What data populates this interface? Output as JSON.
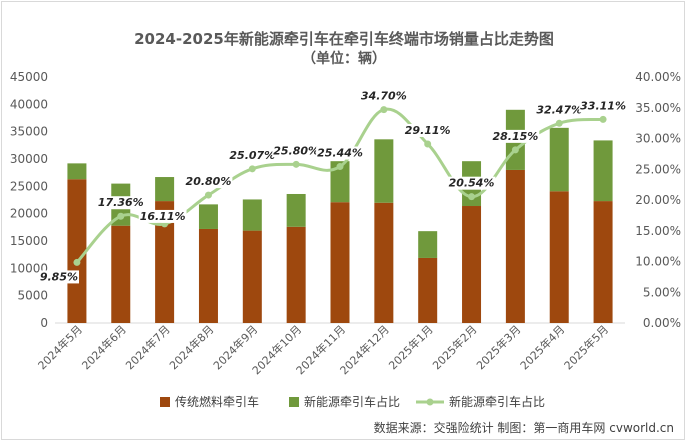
{
  "chart_data": {
    "type": "bar",
    "title": "2024-2025年新能源牵引车在牵引车终端市场销量占比走势图",
    "subtitle": "（单位：辆）",
    "categories": [
      "2024年5月",
      "2024年6月",
      "2024年7月",
      "2024年8月",
      "2024年9月",
      "2024年10月",
      "2024年11月",
      "2024年12月",
      "2025年1月",
      "2025年2月",
      "2025年3月",
      "2025年4月",
      "2025年5月"
    ],
    "series": [
      {
        "name": "传统燃料牵引车",
        "type": "bar",
        "stack": "total",
        "color": "#9E480E",
        "values": [
          26300,
          17800,
          22300,
          17200,
          16900,
          17600,
          22100,
          22000,
          11900,
          21400,
          28000,
          24100,
          22300
        ]
      },
      {
        "name": "新能源牵引车占比",
        "type": "bar",
        "stack": "total",
        "color": "#70993C",
        "values": [
          2900,
          7700,
          4400,
          4500,
          5700,
          6000,
          7500,
          11600,
          4900,
          8200,
          11000,
          11600,
          11100
        ]
      },
      {
        "name": "新能源牵引车占比",
        "type": "line",
        "axis": "right",
        "color": "#A9D18E",
        "values": [
          9.85,
          17.36,
          16.11,
          20.8,
          25.07,
          25.8,
          25.44,
          34.7,
          29.11,
          20.54,
          28.15,
          32.47,
          33.11
        ],
        "labels": [
          "9.85%",
          "17.36%",
          "16.11%",
          "20.80%",
          "25.07%",
          "25.80%",
          "25.44%",
          "34.70%",
          "29.11%",
          "20.54%",
          "28.15%",
          "32.47%",
          "33.11%"
        ]
      }
    ],
    "ylim": [
      0,
      45000
    ],
    "yticks": [
      "0",
      "5000",
      "10000",
      "15000",
      "20000",
      "25000",
      "30000",
      "35000",
      "40000",
      "45000"
    ],
    "y2lim": [
      0,
      40
    ],
    "y2ticks": [
      "0.00%",
      "5.00%",
      "10.00%",
      "15.00%",
      "20.00%",
      "25.00%",
      "30.00%",
      "35.00%",
      "40.00%"
    ],
    "grid": false,
    "legend": "bottom"
  },
  "source": "数据来源：交强险统计  制图：第一商用车网 cvworld.cn"
}
